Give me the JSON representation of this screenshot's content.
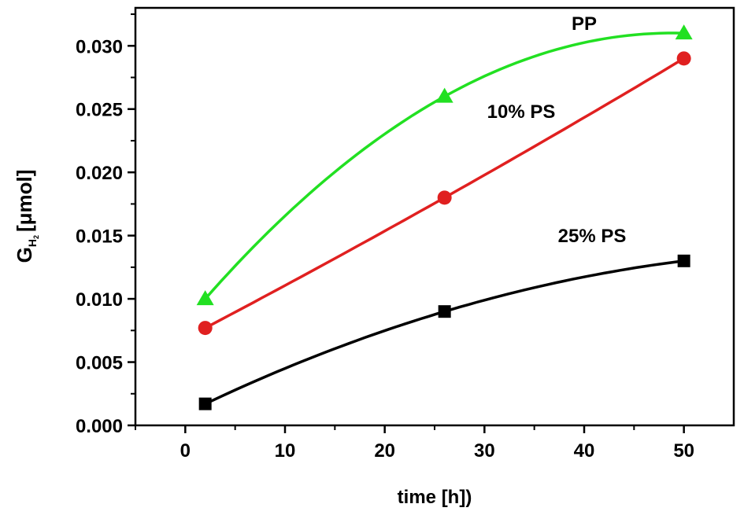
{
  "chart_data": {
    "type": "line",
    "xlabel": "time [h])",
    "ylabel": {
      "main": "G",
      "sub_letter": "H",
      "sub_digit": "2",
      "unit": "[μmol]"
    },
    "xlim": [
      -5,
      55
    ],
    "ylim": [
      0,
      0.033
    ],
    "xticks": [
      "0",
      "10",
      "20",
      "30",
      "40",
      "50"
    ],
    "xtick_values": [
      0,
      10,
      20,
      30,
      40,
      50
    ],
    "yticks": [
      "0.000",
      "0.005",
      "0.010",
      "0.015",
      "0.020",
      "0.025",
      "0.030"
    ],
    "ytick_values": [
      0,
      0.005,
      0.01,
      0.015,
      0.02,
      0.025,
      0.03
    ],
    "grid": false,
    "legend": "inline labels",
    "series": [
      {
        "name": "PP",
        "color": "#22e022",
        "marker": "triangle",
        "x": [
          2,
          26,
          50
        ],
        "y": [
          0.01,
          0.026,
          0.031
        ]
      },
      {
        "name": "10% PS",
        "color": "#e02020",
        "marker": "circle",
        "x": [
          2,
          26,
          50
        ],
        "y": [
          0.0077,
          0.018,
          0.029
        ]
      },
      {
        "name": "25% PS",
        "color": "#000000",
        "marker": "square",
        "x": [
          2,
          26,
          50
        ],
        "y": [
          0.0017,
          0.009,
          0.013
        ]
      }
    ]
  }
}
